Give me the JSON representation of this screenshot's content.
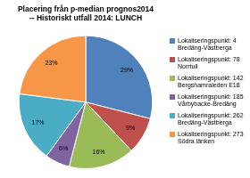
{
  "chart_data": {
    "type": "pie",
    "title": "Placering från p-median prognos2014\n-- Historiskt utfall 2014: LUNCH",
    "categories": [
      "Lokaliseringspunkt: 4 Bredäng-Västberga",
      "Lokaliseringspunkt: 78 Norrtull",
      "Lokaliseringspunkt: 142 Bergshamraleden E18",
      "Lokaliseringspunkt: 185 Vårbybacke-Bredäng",
      "Lokaliseringspunkt: 262 Bredäng-Västberga",
      "Lokaliseringspunkt: 273 Södra länken"
    ],
    "values": [
      29,
      9,
      16,
      6,
      17,
      23
    ],
    "value_labels": [
      "29%",
      "9%",
      "16%",
      "6%",
      "17%",
      "23%"
    ],
    "colors": [
      "#4f81bd",
      "#c0504d",
      "#9bbb59",
      "#8064a2",
      "#4bacc6",
      "#f79646"
    ],
    "data_labels": true,
    "legend": "right"
  }
}
